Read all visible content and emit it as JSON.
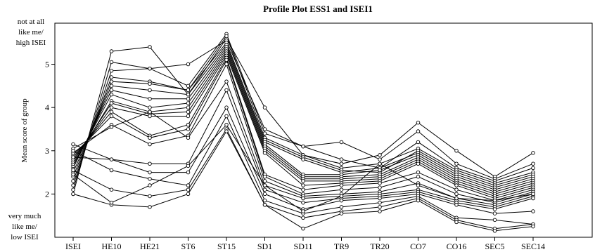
{
  "chart_data": {
    "type": "line",
    "title": "Profile Plot ESS1 and ISEI1",
    "xlabel": "",
    "ylabel": "Mean score of group",
    "categories": [
      "ISEI",
      "HE10",
      "HE21",
      "ST6",
      "ST15",
      "SD1",
      "SD11",
      "TR9",
      "TR20",
      "CO7",
      "CO16",
      "SEC5",
      "SEC14"
    ],
    "ylim": [
      1.0,
      5.95
    ],
    "yticks": [
      2,
      3,
      4,
      5
    ],
    "annotations": {
      "top": [
        "not at all",
        "like me/",
        "high ISEI"
      ],
      "bottom": [
        "very much",
        "like me/",
        "low ISEI"
      ]
    },
    "grid": false,
    "series": [
      {
        "values": [
          2.0,
          5.3,
          5.4,
          4.3,
          5.6,
          4.0,
          2.9,
          2.7,
          2.9,
          3.65,
          3.0,
          2.4,
          2.95
        ]
      },
      {
        "values": [
          2.1,
          5.05,
          4.9,
          5.0,
          5.55,
          3.5,
          3.1,
          3.2,
          2.8,
          3.45,
          2.7,
          2.35,
          2.7
        ]
      },
      {
        "values": [
          2.2,
          4.85,
          4.9,
          4.5,
          5.7,
          3.4,
          3.1,
          2.8,
          2.6,
          3.2,
          2.6,
          2.3,
          2.6
        ]
      },
      {
        "values": [
          2.3,
          4.7,
          4.6,
          4.4,
          5.65,
          3.3,
          2.9,
          2.6,
          2.7,
          3.05,
          2.55,
          2.25,
          2.5
        ]
      },
      {
        "values": [
          2.4,
          4.6,
          4.55,
          4.4,
          5.5,
          3.25,
          2.85,
          2.55,
          2.5,
          3.0,
          2.5,
          2.2,
          2.45
        ]
      },
      {
        "values": [
          2.5,
          4.5,
          4.4,
          4.3,
          5.45,
          3.2,
          2.8,
          2.5,
          2.6,
          2.95,
          2.45,
          2.15,
          2.4
        ]
      },
      {
        "values": [
          2.6,
          4.4,
          4.2,
          4.2,
          5.4,
          3.15,
          2.45,
          2.45,
          2.55,
          2.9,
          2.4,
          2.1,
          2.35
        ]
      },
      {
        "values": [
          2.65,
          4.3,
          4.0,
          4.1,
          5.35,
          3.1,
          2.4,
          2.4,
          2.45,
          2.85,
          2.35,
          2.05,
          2.3
        ]
      },
      {
        "values": [
          2.7,
          4.15,
          3.9,
          4.0,
          5.3,
          3.05,
          2.35,
          2.35,
          2.4,
          2.8,
          2.3,
          2.0,
          2.25
        ]
      },
      {
        "values": [
          2.75,
          4.1,
          3.85,
          3.9,
          5.25,
          3.0,
          2.3,
          2.3,
          2.35,
          2.75,
          2.25,
          1.95,
          2.2
        ]
      },
      {
        "values": [
          2.8,
          4.0,
          3.8,
          3.8,
          5.2,
          2.95,
          2.2,
          2.25,
          2.3,
          2.7,
          2.2,
          1.9,
          2.15
        ]
      },
      {
        "values": [
          2.85,
          3.9,
          3.35,
          3.6,
          5.15,
          2.45,
          2.1,
          2.2,
          2.25,
          2.5,
          2.1,
          1.85,
          2.1
        ]
      },
      {
        "values": [
          2.9,
          3.8,
          3.3,
          3.5,
          5.1,
          2.4,
          2.0,
          2.1,
          2.15,
          2.4,
          2.0,
          1.8,
          2.05
        ]
      },
      {
        "values": [
          2.95,
          3.6,
          3.15,
          3.35,
          5.0,
          2.3,
          1.95,
          2.0,
          2.05,
          2.25,
          1.9,
          1.75,
          2.0
        ]
      },
      {
        "values": [
          3.05,
          3.55,
          3.9,
          3.3,
          4.6,
          2.2,
          1.9,
          1.95,
          2.0,
          2.1,
          1.85,
          1.7,
          1.95
        ]
      },
      {
        "values": [
          3.15,
          2.8,
          2.7,
          2.7,
          4.4,
          2.1,
          1.8,
          1.9,
          1.95,
          2.05,
          1.8,
          1.65,
          1.9
        ]
      },
      {
        "values": [
          2.85,
          2.8,
          2.5,
          2.5,
          4.0,
          2.0,
          1.65,
          1.85,
          1.9,
          2.0,
          1.75,
          1.55,
          1.6
        ]
      },
      {
        "values": [
          3.0,
          2.55,
          2.35,
          2.2,
          3.8,
          1.85,
          1.55,
          1.7,
          1.8,
          1.95,
          1.45,
          1.4,
          1.3
        ]
      },
      {
        "values": [
          2.55,
          2.1,
          1.95,
          2.1,
          3.5,
          1.75,
          1.45,
          1.6,
          1.7,
          1.9,
          1.4,
          1.2,
          1.3
        ]
      },
      {
        "values": [
          2.0,
          1.75,
          1.7,
          2.0,
          3.45,
          1.75,
          1.2,
          1.55,
          1.6,
          1.85,
          1.35,
          1.15,
          1.25
        ]
      },
      {
        "values": [
          2.45,
          1.8,
          2.2,
          2.65,
          3.6,
          2.2,
          1.6,
          1.95,
          2.7,
          2.2,
          1.9,
          1.85,
          2.0
        ]
      }
    ]
  }
}
